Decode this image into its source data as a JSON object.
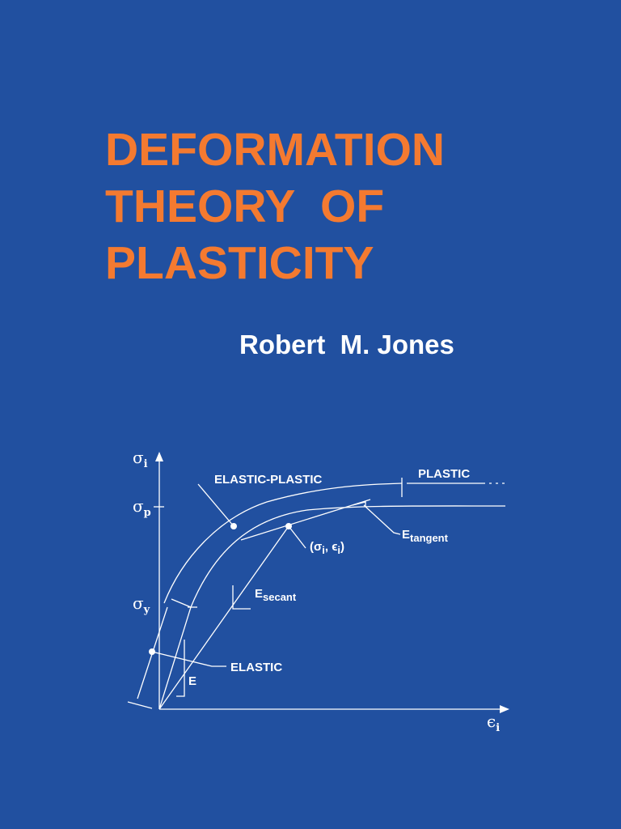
{
  "cover": {
    "title_lines": [
      "DEFORMATION",
      "THEORY  OF",
      "PLASTICITY"
    ],
    "author": "Robert  M. Jones",
    "diagram": {
      "y_axis": {
        "base": "σ",
        "sub": "i"
      },
      "sigma_p": {
        "base": "σ",
        "sub": "p"
      },
      "sigma_y": {
        "base": "σ",
        "sub": "y"
      },
      "x_axis": {
        "base": "ϵ",
        "sub": "i"
      },
      "elastic_plastic": "ELASTIC-PLASTIC",
      "plastic": "PLASTIC",
      "e_tangent": {
        "base": "E",
        "sub": "tangent"
      },
      "point": {
        "open": "(σ",
        "sub1": "i",
        "mid": ", ϵ",
        "sub2": "i",
        "close": ")"
      },
      "e_secant": {
        "base": "E",
        "sub": "secant"
      },
      "elastic": "ELASTIC",
      "e": "E"
    }
  }
}
